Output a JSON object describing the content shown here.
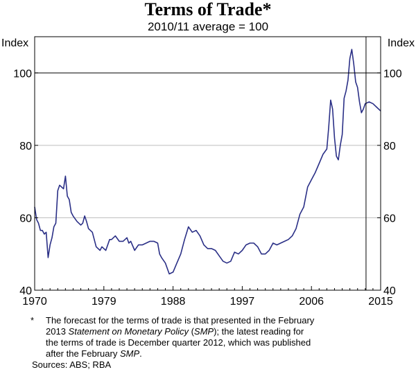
{
  "chart_data": {
    "type": "line",
    "title": "Terms of Trade*",
    "subtitle": "2010/11 average = 100",
    "left_axis_label": "Index",
    "right_axis_label": "Index",
    "xlim": [
      1970,
      2015
    ],
    "ylim": [
      40,
      110
    ],
    "x_tick_labels": [
      "1970",
      "1979",
      "1988",
      "1997",
      "2006",
      "2015"
    ],
    "x_ticks": [
      1970,
      1979,
      1988,
      1997,
      2006,
      2015
    ],
    "y_ticks": [
      40,
      60,
      80,
      100
    ],
    "y_tick_labels": [
      "40",
      "60",
      "80",
      "100"
    ],
    "grid": true,
    "reference_line": 100,
    "forecast_start": 2013.1,
    "series": [
      {
        "color": "#2a2f86",
        "points": [
          [
            1970.0,
            63
          ],
          [
            1970.25,
            59.5
          ],
          [
            1970.5,
            58.5
          ],
          [
            1970.75,
            56.5
          ],
          [
            1971.0,
            56.5
          ],
          [
            1971.25,
            55.5
          ],
          [
            1971.5,
            56
          ],
          [
            1971.75,
            49
          ],
          [
            1972.0,
            52.5
          ],
          [
            1972.25,
            54.5
          ],
          [
            1972.5,
            57.5
          ],
          [
            1972.75,
            58.5
          ],
          [
            1973.0,
            67.5
          ],
          [
            1973.25,
            69
          ],
          [
            1973.5,
            68.5
          ],
          [
            1973.75,
            68
          ],
          [
            1974.0,
            71.5
          ],
          [
            1974.25,
            66
          ],
          [
            1974.5,
            65
          ],
          [
            1974.75,
            61.5
          ],
          [
            1975.0,
            60.5
          ],
          [
            1975.5,
            59
          ],
          [
            1976.0,
            58
          ],
          [
            1976.25,
            58.5
          ],
          [
            1976.5,
            60.5
          ],
          [
            1976.75,
            59
          ],
          [
            1977.0,
            57
          ],
          [
            1977.5,
            56
          ],
          [
            1978.0,
            52
          ],
          [
            1978.5,
            51
          ],
          [
            1978.75,
            52
          ],
          [
            1979.0,
            51.5
          ],
          [
            1979.25,
            51
          ],
          [
            1979.75,
            54
          ],
          [
            1980.0,
            54
          ],
          [
            1980.5,
            55
          ],
          [
            1981.0,
            53.5
          ],
          [
            1981.5,
            53.5
          ],
          [
            1982.0,
            54.5
          ],
          [
            1982.25,
            53
          ],
          [
            1982.5,
            53.5
          ],
          [
            1983.0,
            51
          ],
          [
            1983.5,
            52.5
          ],
          [
            1984.0,
            52.5
          ],
          [
            1984.5,
            53
          ],
          [
            1985.0,
            53.5
          ],
          [
            1985.5,
            53.5
          ],
          [
            1986.0,
            53
          ],
          [
            1986.25,
            50
          ],
          [
            1986.5,
            49
          ],
          [
            1987.0,
            47.5
          ],
          [
            1987.5,
            44.5
          ],
          [
            1988.0,
            45
          ],
          [
            1988.5,
            47.5
          ],
          [
            1989.0,
            50
          ],
          [
            1989.5,
            54
          ],
          [
            1990.0,
            57.5
          ],
          [
            1990.5,
            56
          ],
          [
            1991.0,
            56.5
          ],
          [
            1991.5,
            55
          ],
          [
            1992.0,
            52.5
          ],
          [
            1992.5,
            51.5
          ],
          [
            1993.0,
            51.5
          ],
          [
            1993.5,
            51
          ],
          [
            1994.0,
            49.5
          ],
          [
            1994.5,
            48
          ],
          [
            1995.0,
            47.5
          ],
          [
            1995.5,
            48
          ],
          [
            1996.0,
            50.5
          ],
          [
            1996.5,
            50
          ],
          [
            1997.0,
            51
          ],
          [
            1997.5,
            52.5
          ],
          [
            1998.0,
            53
          ],
          [
            1998.5,
            53
          ],
          [
            1999.0,
            52
          ],
          [
            1999.5,
            50
          ],
          [
            2000.0,
            50
          ],
          [
            2000.5,
            51
          ],
          [
            2001.0,
            53
          ],
          [
            2001.5,
            52.5
          ],
          [
            2002.0,
            53
          ],
          [
            2002.5,
            53.5
          ],
          [
            2003.0,
            54
          ],
          [
            2003.5,
            55
          ],
          [
            2004.0,
            57
          ],
          [
            2004.5,
            61
          ],
          [
            2005.0,
            63
          ],
          [
            2005.5,
            68.5
          ],
          [
            2006.0,
            70.5
          ],
          [
            2006.5,
            72.5
          ],
          [
            2007.0,
            75
          ],
          [
            2007.5,
            77.5
          ],
          [
            2008.0,
            79
          ],
          [
            2008.25,
            85
          ],
          [
            2008.5,
            92.5
          ],
          [
            2008.75,
            90
          ],
          [
            2009.0,
            82
          ],
          [
            2009.25,
            77
          ],
          [
            2009.5,
            76
          ],
          [
            2009.75,
            80
          ],
          [
            2010.0,
            83
          ],
          [
            2010.25,
            93
          ],
          [
            2010.5,
            95
          ],
          [
            2010.75,
            98
          ],
          [
            2011.0,
            104
          ],
          [
            2011.25,
            106.5
          ],
          [
            2011.5,
            102.5
          ],
          [
            2011.75,
            97.5
          ],
          [
            2012.0,
            96
          ],
          [
            2012.25,
            92
          ],
          [
            2012.5,
            89
          ],
          [
            2012.75,
            90
          ],
          [
            2013.0,
            91.5
          ],
          [
            2013.5,
            92
          ],
          [
            2014.0,
            91.5
          ],
          [
            2014.5,
            90.5
          ],
          [
            2015.0,
            89.5
          ]
        ]
      }
    ]
  },
  "notes": {
    "marker": "*",
    "line1": "The forecast for the terms of trade is that presented in the February",
    "line2_start": "2013 ",
    "line2_italic": "Statement on Monetary Policy",
    "line2_mid": " (",
    "line2_italic2": "SMP",
    "line2_end": "); the latest reading for",
    "line3": "the terms of trade is December quarter 2012, which was published",
    "line4_start": "after the February ",
    "line4_italic": "SMP",
    "line4_end": ".",
    "sources": "Sources: ABS; RBA"
  },
  "colors": {
    "line": "#2a2f86",
    "grid": "#bdbdbd",
    "axis": "#000000"
  }
}
